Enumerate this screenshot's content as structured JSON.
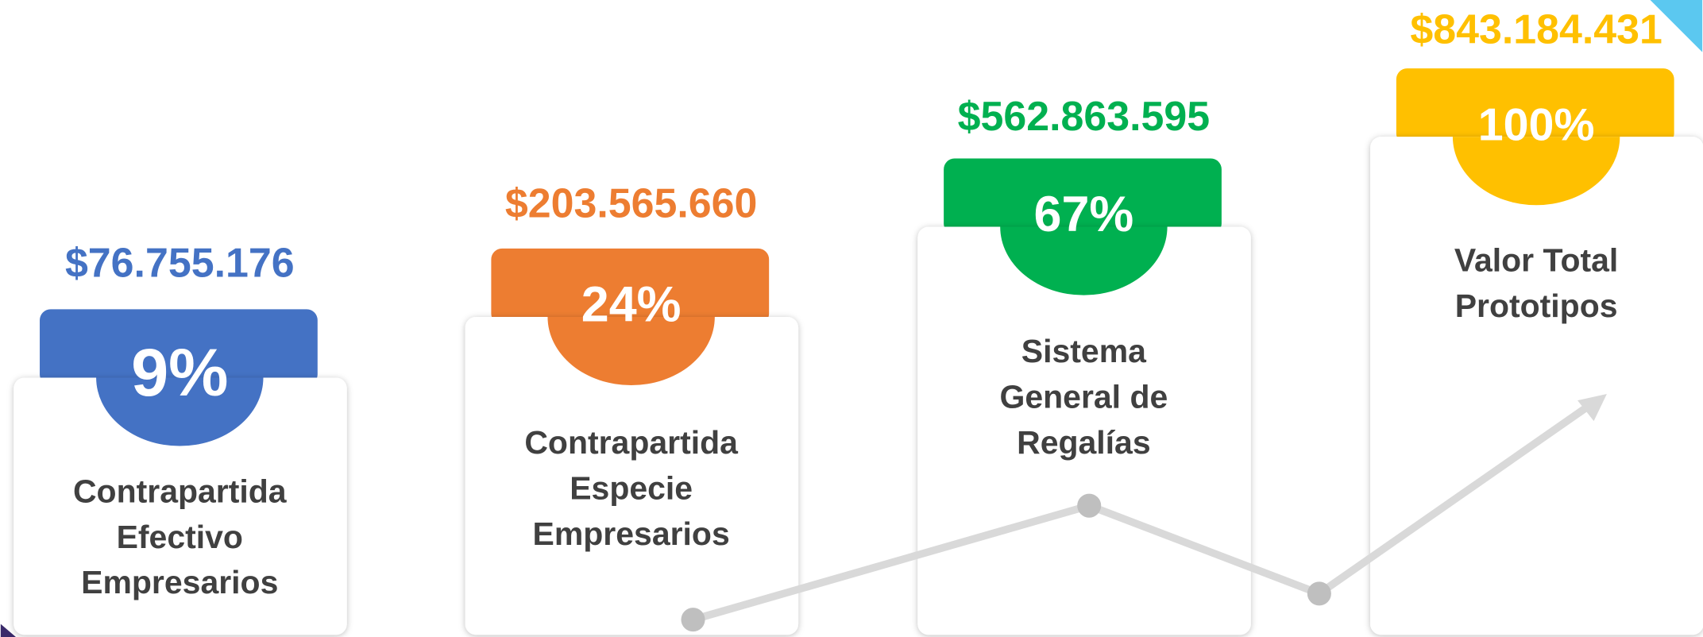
{
  "items": [
    {
      "amount": "$76.755.176",
      "percent": "9%",
      "label": [
        "Contrapartida",
        "Efectivo",
        "Empresarios"
      ],
      "color": "#4472c4"
    },
    {
      "amount": "$203.565.660",
      "percent": "24%",
      "label": [
        "Contrapartida",
        "Especie",
        "Empresarios"
      ],
      "color": "#ed7d31"
    },
    {
      "amount": "$562.863.595",
      "percent": "67%",
      "label": [
        "Sistema",
        "General de",
        "Regalías"
      ],
      "color": "#00b050"
    },
    {
      "amount": "$843.184.431",
      "percent": "100%",
      "label": [
        "Valor Total",
        "Prototipos"
      ],
      "color": "#ffc000"
    }
  ]
}
